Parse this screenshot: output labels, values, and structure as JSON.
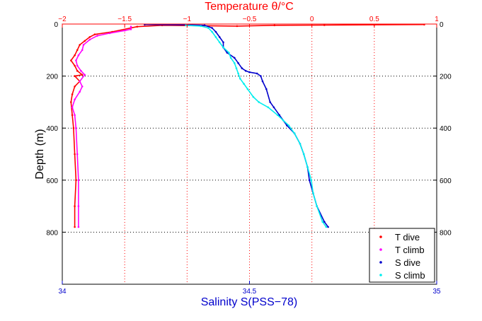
{
  "chart_data": {
    "type": "scatter",
    "top_axis": {
      "label": "Temperature θ/°C",
      "range": [
        -2,
        1
      ],
      "ticks": [
        -2,
        -1.5,
        -1,
        -0.5,
        0,
        0.5,
        1
      ],
      "tick_labels": [
        "−2",
        "−1.5",
        "−1",
        "−0.5",
        "0",
        "0.5",
        "1"
      ],
      "color": "#ff0000"
    },
    "bottom_axis": {
      "label": "Salinity S(PSS−78)",
      "range": [
        34,
        35
      ],
      "ticks": [
        34,
        34.5,
        35
      ],
      "tick_labels": [
        "34",
        "34.5",
        "35"
      ],
      "color": "#0000cc"
    },
    "y_axis": {
      "label": "Depth (m)",
      "range": [
        0,
        1000
      ],
      "inverted": true,
      "ticks": [
        0,
        200,
        400,
        600,
        800
      ],
      "tick_labels": [
        "0",
        "200",
        "400",
        "600",
        "800"
      ]
    },
    "grid": true,
    "legend_position": "bottom-right",
    "series": [
      {
        "name": "T dive",
        "axis": "temperature",
        "color": "#ff0000",
        "points": [
          [
            -1.9,
            780
          ],
          [
            -1.9,
            700
          ],
          [
            -1.89,
            600
          ],
          [
            -1.9,
            500
          ],
          [
            -1.91,
            400
          ],
          [
            -1.92,
            350
          ],
          [
            -1.93,
            300
          ],
          [
            -1.92,
            270
          ],
          [
            -1.9,
            240
          ],
          [
            -1.86,
            220
          ],
          [
            -1.9,
            200
          ],
          [
            -1.84,
            195
          ],
          [
            -1.88,
            180
          ],
          [
            -1.9,
            160
          ],
          [
            -1.93,
            140
          ],
          [
            -1.9,
            120
          ],
          [
            -1.88,
            100
          ],
          [
            -1.86,
            80
          ],
          [
            -1.82,
            65
          ],
          [
            -1.78,
            50
          ],
          [
            -1.74,
            40
          ],
          [
            -1.6,
            30
          ],
          [
            -1.4,
            10
          ],
          [
            -1.2,
            5
          ],
          [
            -0.6,
            8
          ],
          [
            -0.3,
            5
          ],
          [
            0.1,
            4
          ],
          [
            0.5,
            3
          ],
          [
            0.9,
            2
          ]
        ]
      },
      {
        "name": "T climb",
        "axis": "temperature",
        "color": "#ff00ff",
        "points": [
          [
            -1.87,
            780
          ],
          [
            -1.87,
            700
          ],
          [
            -1.87,
            600
          ],
          [
            -1.88,
            500
          ],
          [
            -1.89,
            400
          ],
          [
            -1.9,
            350
          ],
          [
            -1.92,
            320
          ],
          [
            -1.9,
            290
          ],
          [
            -1.86,
            260
          ],
          [
            -1.84,
            240
          ],
          [
            -1.86,
            220
          ],
          [
            -1.82,
            195
          ],
          [
            -1.85,
            180
          ],
          [
            -1.88,
            160
          ],
          [
            -1.89,
            140
          ],
          [
            -1.87,
            120
          ],
          [
            -1.84,
            100
          ],
          [
            -1.83,
            80
          ],
          [
            -1.78,
            60
          ],
          [
            -1.72,
            45
          ],
          [
            -1.62,
            35
          ],
          [
            -1.5,
            25
          ],
          [
            -1.45,
            20
          ],
          [
            -1.45,
            10
          ]
        ]
      },
      {
        "name": "S dive",
        "axis": "salinity",
        "color": "#0000cc",
        "points": [
          [
            34.71,
            780
          ],
          [
            34.7,
            760
          ],
          [
            34.68,
            700
          ],
          [
            34.67,
            650
          ],
          [
            34.66,
            600
          ],
          [
            34.655,
            550
          ],
          [
            34.645,
            500
          ],
          [
            34.635,
            460
          ],
          [
            34.62,
            420
          ],
          [
            34.6,
            390
          ],
          [
            34.58,
            350
          ],
          [
            34.565,
            320
          ],
          [
            34.555,
            300
          ],
          [
            34.545,
            250
          ],
          [
            34.535,
            220
          ],
          [
            34.53,
            200
          ],
          [
            34.52,
            190
          ],
          [
            34.5,
            185
          ],
          [
            34.49,
            180
          ],
          [
            34.48,
            170
          ],
          [
            34.47,
            150
          ],
          [
            34.46,
            130
          ],
          [
            34.44,
            110
          ],
          [
            34.43,
            90
          ],
          [
            34.43,
            70
          ],
          [
            34.42,
            50
          ],
          [
            34.41,
            30
          ],
          [
            34.4,
            15
          ],
          [
            34.38,
            5
          ],
          [
            34.33,
            3
          ],
          [
            34.22,
            2
          ]
        ]
      },
      {
        "name": "S climb",
        "axis": "salinity",
        "color": "#00eeee",
        "points": [
          [
            34.705,
            780
          ],
          [
            34.695,
            760
          ],
          [
            34.68,
            700
          ],
          [
            34.67,
            650
          ],
          [
            34.665,
            600
          ],
          [
            34.655,
            550
          ],
          [
            34.645,
            500
          ],
          [
            34.635,
            460
          ],
          [
            34.62,
            420
          ],
          [
            34.605,
            390
          ],
          [
            34.59,
            370
          ],
          [
            34.575,
            350
          ],
          [
            34.55,
            320
          ],
          [
            34.525,
            300
          ],
          [
            34.51,
            280
          ],
          [
            34.495,
            250
          ],
          [
            34.485,
            230
          ],
          [
            34.475,
            210
          ],
          [
            34.47,
            190
          ],
          [
            34.465,
            170
          ],
          [
            34.46,
            150
          ],
          [
            34.45,
            130
          ],
          [
            34.445,
            110
          ],
          [
            34.43,
            90
          ],
          [
            34.42,
            70
          ],
          [
            34.41,
            50
          ],
          [
            34.4,
            30
          ],
          [
            34.39,
            15
          ],
          [
            34.37,
            8
          ],
          [
            34.33,
            5
          ]
        ]
      }
    ]
  }
}
